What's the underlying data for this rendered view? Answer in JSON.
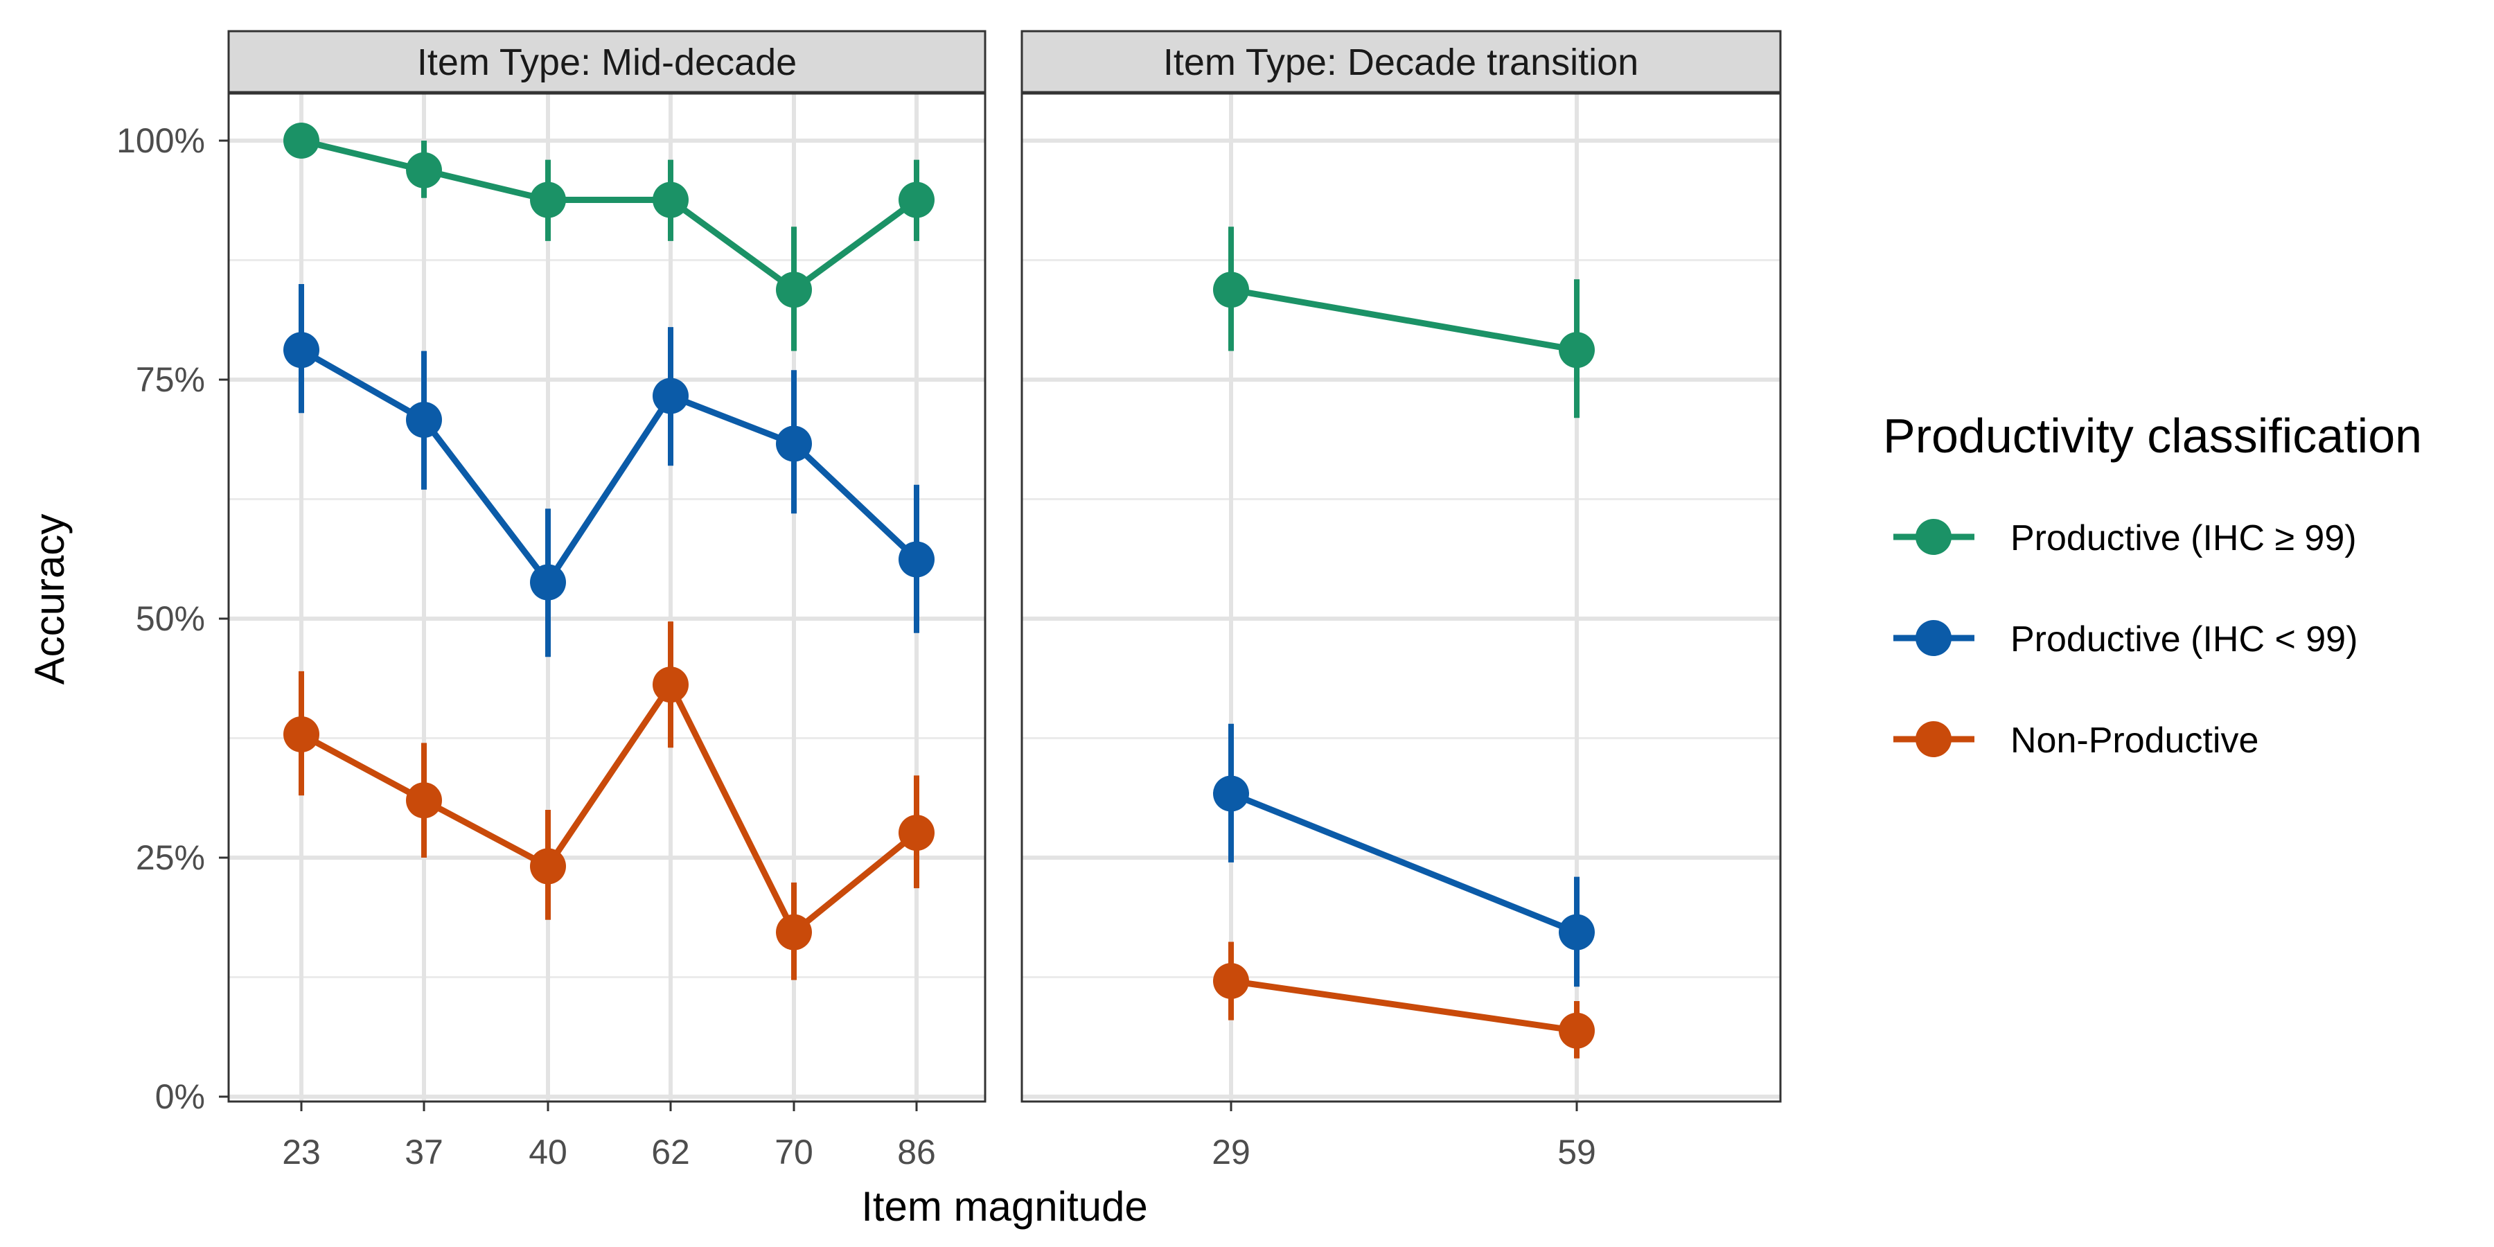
{
  "chart_data": {
    "type": "line",
    "ylabel": "Accuracy",
    "xlabel": "Item magnitude",
    "ylim": [
      0,
      1
    ],
    "y_ticks": [
      0,
      0.25,
      0.5,
      0.75,
      1.0
    ],
    "y_tick_labels": [
      "0%",
      "25%",
      "50%",
      "75%",
      "100%"
    ],
    "y_scale": "percent",
    "grid": true,
    "legend": {
      "title": "Productivity classification",
      "placement": "right",
      "entries": [
        {
          "name": "Productive (IHC ≥ 99)",
          "color": "#1b9266"
        },
        {
          "name": "Productive (IHC < 99)",
          "color": "#0b5ba8"
        },
        {
          "name": "Non-Productive",
          "color": "#c94a0a"
        }
      ]
    },
    "facets": [
      {
        "strip": "Item Type: Mid-decade",
        "categories": [
          "23",
          "37",
          "40",
          "62",
          "70",
          "86"
        ],
        "series": [
          {
            "name": "Productive (IHC ≥ 99)",
            "color": "#1b9266",
            "values": [
              1.0,
              0.969,
              0.938,
              0.938,
              0.844,
              0.938
            ],
            "lower": [
              1.0,
              0.94,
              0.895,
              0.895,
              0.78,
              0.895
            ],
            "upper": [
              1.0,
              1.0,
              0.98,
              0.98,
              0.91,
              0.98
            ]
          },
          {
            "name": "Productive (IHC < 99)",
            "color": "#0b5ba8",
            "values": [
              0.781,
              0.708,
              0.538,
              0.733,
              0.683,
              0.562
            ],
            "lower": [
              0.715,
              0.635,
              0.46,
              0.66,
              0.61,
              0.485
            ],
            "upper": [
              0.85,
              0.78,
              0.615,
              0.805,
              0.76,
              0.64
            ]
          },
          {
            "name": "Non-Productive",
            "color": "#c94a0a",
            "values": [
              0.379,
              0.31,
              0.241,
              0.431,
              0.172,
              0.276
            ],
            "lower": [
              0.315,
              0.25,
              0.185,
              0.365,
              0.122,
              0.218
            ],
            "upper": [
              0.445,
              0.37,
              0.3,
              0.497,
              0.224,
              0.336
            ]
          }
        ]
      },
      {
        "strip": "Item Type: Decade transition",
        "categories": [
          "29",
          "59"
        ],
        "series": [
          {
            "name": "Productive (IHC ≥ 99)",
            "color": "#1b9266",
            "values": [
              0.844,
              0.781
            ],
            "lower": [
              0.78,
              0.71
            ],
            "upper": [
              0.91,
              0.855
            ]
          },
          {
            "name": "Productive (IHC < 99)",
            "color": "#0b5ba8",
            "values": [
              0.317,
              0.172
            ],
            "lower": [
              0.245,
              0.115
            ],
            "upper": [
              0.39,
              0.23
            ]
          },
          {
            "name": "Non-Productive",
            "color": "#c94a0a",
            "values": [
              0.121,
              0.069
            ],
            "lower": [
              0.08,
              0.04
            ],
            "upper": [
              0.162,
              0.1
            ]
          }
        ]
      }
    ]
  }
}
